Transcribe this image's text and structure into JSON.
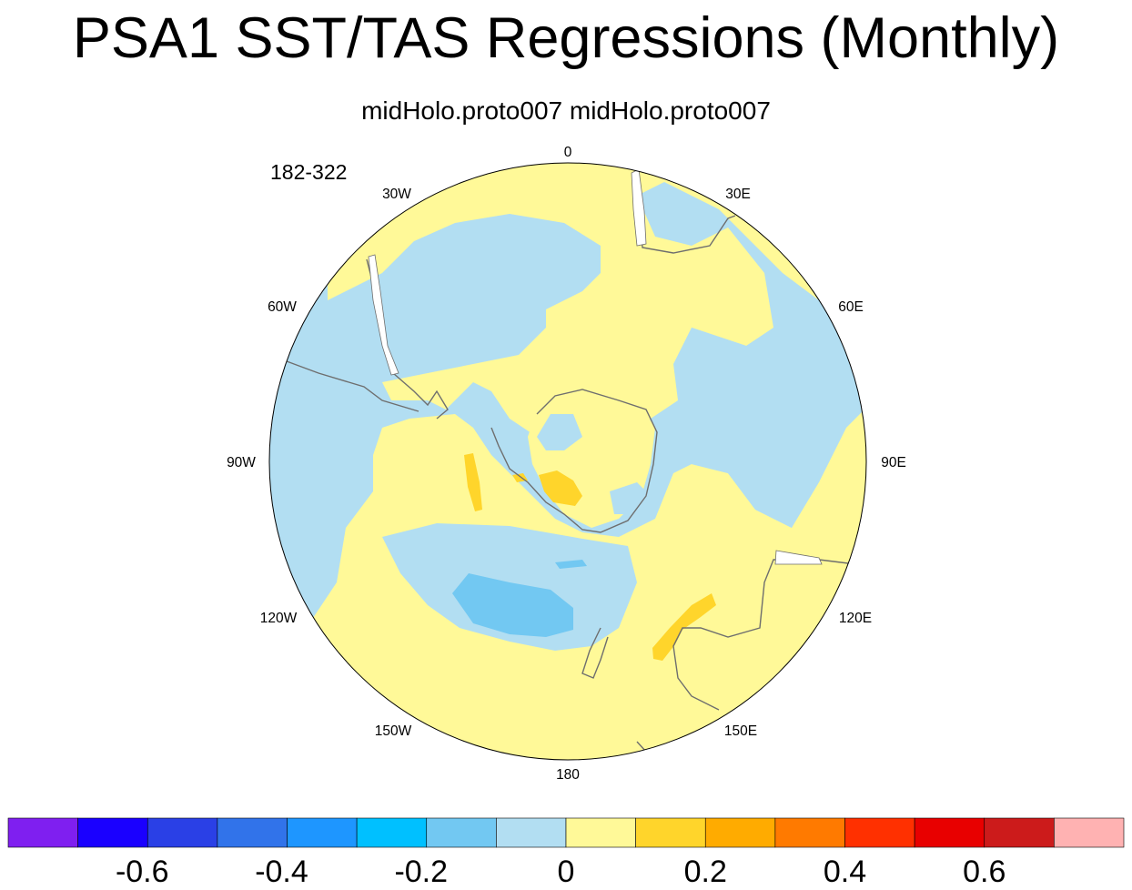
{
  "title": "PSA1 SST/TAS Regressions (Monthly)",
  "subtitle": "midHolo.proto007  midHolo.proto007",
  "period_label": "182-322",
  "map": {
    "projection": "south polar stereographic",
    "longitude_labels": [
      "0",
      "30E",
      "60E",
      "90E",
      "120E",
      "150E",
      "180",
      "150W",
      "120W",
      "90W",
      "60W",
      "30W"
    ]
  },
  "colorbar": {
    "colors": [
      "#7f1ff0",
      "#1a00ff",
      "#2a40e6",
      "#3173ea",
      "#1e96ff",
      "#00c0ff",
      "#72c8f2",
      "#b2def2",
      "#fff998",
      "#ffd52b",
      "#ffab00",
      "#ff7a00",
      "#ff3000",
      "#e80000",
      "#cc1b1b",
      "#ffb2b2"
    ],
    "tick_labels": [
      "-0.6",
      "-0.4",
      "-0.2",
      "0",
      "0.2",
      "0.4",
      "0.6"
    ]
  },
  "legend_colors": {
    "ocean_background": "#b2def2",
    "positive_weak": "#fff998",
    "positive_mid": "#ffd52b",
    "negative_mid": "#72c8f2",
    "coastline": "#6e6e6e"
  }
}
